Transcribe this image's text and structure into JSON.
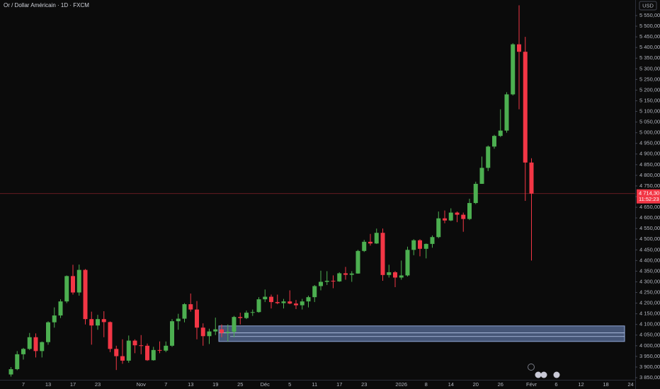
{
  "chart_data": {
    "type": "candlestick",
    "title": "Or / Dollar Américain · 1D · FXCM",
    "currency": "USD",
    "up_color": "#4caf50",
    "down_color": "#f23645",
    "categories": [
      null,
      null,
      "7",
      null,
      null,
      null,
      "13",
      null,
      null,
      null,
      "17",
      null,
      null,
      null,
      "23",
      null,
      null,
      null,
      null,
      null,
      null,
      "Nov",
      null,
      null,
      null,
      "7",
      null,
      null,
      null,
      "13",
      null,
      null,
      null,
      "19",
      null,
      null,
      null,
      "25",
      null,
      null,
      null,
      "Déc",
      null,
      null,
      null,
      "5",
      null,
      null,
      null,
      "11",
      null,
      null,
      null,
      "17",
      null,
      null,
      null,
      "23",
      null,
      null,
      null,
      null,
      null,
      "2026",
      null,
      null,
      null,
      "8",
      null,
      null,
      null,
      "14",
      null,
      null,
      null,
      "20",
      null,
      null,
      null,
      "26",
      null,
      null,
      null,
      null,
      "Févr",
      null,
      null,
      null,
      "6",
      null,
      null,
      null,
      "12",
      null,
      null,
      null,
      "18",
      null,
      null,
      null,
      "24"
    ],
    "open": [
      3865,
      3890,
      3960,
      3985,
      4040,
      3975,
      4017,
      4110,
      4142,
      4208,
      4327,
      4250,
      4356,
      4125,
      4095,
      4125,
      4111,
      3985,
      3951,
      3930,
      4024,
      4002,
      4000,
      3932,
      3980,
      3977,
      4000,
      4115,
      4127,
      4195,
      4170,
      4085,
      4045,
      4067,
      4077,
      4060,
      4065,
      4135,
      4130,
      4155,
      4158,
      4218,
      4230,
      4205,
      4200,
      4208,
      4198,
      4190,
      4208,
      4228,
      4280,
      4300,
      4305,
      4302,
      4340,
      4333,
      4339,
      4445,
      4488,
      4480,
      4530,
      4332,
      4345,
      4320,
      4330,
      4450,
      4495,
      4455,
      4478,
      4510,
      4598,
      4588,
      4625,
      4615,
      4595,
      4670,
      4760,
      4835,
      4935,
      4985,
      5010,
      5180,
      5415,
      5380,
      4860,
      null,
      null,
      null,
      null,
      null,
      null,
      null,
      null,
      null,
      null,
      null,
      null,
      null,
      null,
      null,
      null
    ],
    "high": [
      3900,
      3975,
      3990,
      4060,
      4058,
      4020,
      4115,
      4180,
      4218,
      4330,
      4380,
      4381,
      4360,
      4160,
      4145,
      4162,
      4114,
      4000,
      4030,
      4048,
      4030,
      4050,
      4010,
      3995,
      4020,
      4020,
      4125,
      4150,
      4200,
      4245,
      4210,
      4105,
      4080,
      4132,
      4100,
      4100,
      4140,
      4155,
      4165,
      4170,
      4228,
      4264,
      4240,
      4240,
      4220,
      4260,
      4215,
      4220,
      4235,
      4285,
      4352,
      4350,
      4330,
      4345,
      4370,
      4350,
      4450,
      4497,
      4525,
      4550,
      4550,
      4380,
      4350,
      4400,
      4465,
      4500,
      4500,
      4480,
      4518,
      4630,
      4635,
      4645,
      4630,
      4625,
      4690,
      4770,
      4888,
      4940,
      4990,
      5110,
      5190,
      5420,
      5598,
      5450,
      4880,
      null,
      null,
      null,
      null,
      null,
      null,
      null,
      null,
      null,
      null,
      null,
      null,
      null,
      null,
      null,
      null
    ],
    "low": [
      3855,
      3885,
      3935,
      3980,
      3945,
      3945,
      4005,
      4085,
      4130,
      4200,
      4240,
      4235,
      4100,
      4005,
      4075,
      4040,
      3970,
      3886,
      3915,
      3920,
      3965,
      3960,
      3929,
      3930,
      3965,
      3970,
      3995,
      4075,
      4110,
      4160,
      4030,
      4000,
      4008,
      4050,
      4040,
      4020,
      4040,
      4100,
      4125,
      4140,
      4155,
      4205,
      4175,
      4195,
      4175,
      4195,
      4172,
      4170,
      4180,
      4205,
      4260,
      4285,
      4270,
      4300,
      4310,
      4300,
      4338,
      4440,
      4470,
      4478,
      4305,
      4320,
      4275,
      4310,
      4325,
      4425,
      4420,
      4410,
      4460,
      4505,
      4575,
      4585,
      4580,
      4535,
      4590,
      4665,
      4760,
      4820,
      4925,
      4980,
      5000,
      5175,
      5110,
      4680,
      4400,
      null,
      null,
      null,
      null,
      null,
      null,
      null,
      null,
      null,
      null,
      null,
      null,
      null,
      null,
      null,
      null
    ],
    "close": [
      3890,
      3960,
      3985,
      4040,
      3975,
      4017,
      4110,
      4142,
      4208,
      4327,
      4250,
      4356,
      4125,
      4095,
      4125,
      4111,
      3985,
      3951,
      3930,
      4024,
      4002,
      4000,
      3932,
      3980,
      3977,
      4000,
      4115,
      4127,
      4195,
      4170,
      4085,
      4045,
      4067,
      4077,
      4060,
      4065,
      4135,
      4130,
      4155,
      4158,
      4218,
      4230,
      4205,
      4200,
      4208,
      4198,
      4190,
      4208,
      4228,
      4280,
      4300,
      4305,
      4302,
      4340,
      4333,
      4339,
      4445,
      4488,
      4480,
      4530,
      4332,
      4345,
      4320,
      4330,
      4450,
      4495,
      4455,
      4478,
      4510,
      4598,
      4588,
      4625,
      4615,
      4595,
      4670,
      4760,
      4835,
      4935,
      4985,
      5010,
      5180,
      5415,
      5380,
      4860,
      4714.3,
      null,
      null,
      null,
      null,
      null,
      null,
      null,
      null,
      null,
      null,
      null,
      null,
      null,
      null,
      null,
      null
    ],
    "last_price": {
      "value": 4714.3,
      "label": "4 714,30"
    },
    "countdown": "11:52:23",
    "zone": {
      "top": 4093,
      "bottom": 4020
    },
    "ylim": [
      3850,
      5550
    ],
    "yticks": [
      {
        "value": 3850,
        "label": "3 850,00"
      },
      {
        "value": 3900,
        "label": "3 900,00"
      },
      {
        "value": 3950,
        "label": "3 950,00"
      },
      {
        "value": 4000,
        "label": "4 000,00"
      },
      {
        "value": 4050,
        "label": "4 050,00"
      },
      {
        "value": 4100,
        "label": "4 100,00"
      },
      {
        "value": 4150,
        "label": "4 150,00"
      },
      {
        "value": 4200,
        "label": "4 200,00"
      },
      {
        "value": 4250,
        "label": "4 250,00"
      },
      {
        "value": 4300,
        "label": "4 300,00"
      },
      {
        "value": 4350,
        "label": "4 350,00"
      },
      {
        "value": 4400,
        "label": "4 400,00"
      },
      {
        "value": 4450,
        "label": "4 450,00"
      },
      {
        "value": 4500,
        "label": "4 500,00"
      },
      {
        "value": 4550,
        "label": "4 550,00"
      },
      {
        "value": 4600,
        "label": "4 600,00"
      },
      {
        "value": 4650,
        "label": "4 650,00"
      },
      {
        "value": 4700,
        "label": "4 700,00"
      },
      {
        "value": 4750,
        "label": "4 750,00"
      },
      {
        "value": 4800,
        "label": "4 800,00"
      },
      {
        "value": 4850,
        "label": "4 850,00"
      },
      {
        "value": 4900,
        "label": "4 900,00"
      },
      {
        "value": 4950,
        "label": "4 950,00"
      },
      {
        "value": 5000,
        "label": "5 000,00"
      },
      {
        "value": 5050,
        "label": "5 050,00"
      },
      {
        "value": 5100,
        "label": "5 100,00"
      },
      {
        "value": 5150,
        "label": "5 150,00"
      },
      {
        "value": 5200,
        "label": "5 200,00"
      },
      {
        "value": 5250,
        "label": "5 250,00"
      },
      {
        "value": 5300,
        "label": "5 300,00"
      },
      {
        "value": 5350,
        "label": "5 350,00"
      },
      {
        "value": 5400,
        "label": "5 400,00"
      },
      {
        "value": 5450,
        "label": "5 450,00"
      },
      {
        "value": 5500,
        "label": "5 500,00"
      },
      {
        "value": 5550,
        "label": "5 550,00"
      }
    ]
  }
}
